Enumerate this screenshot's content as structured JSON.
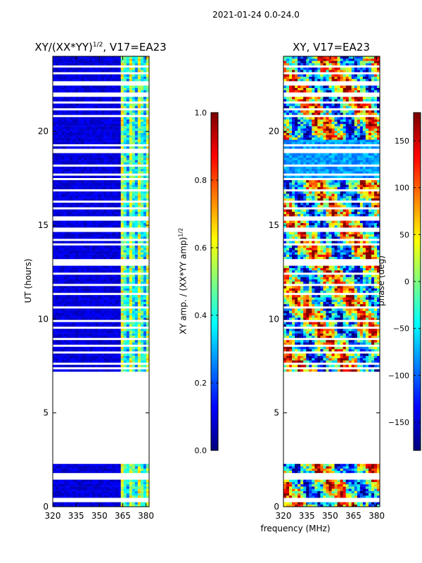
{
  "suptitle": "2021-01-24 0.0-24.0",
  "xlabel": "frequency (MHz)",
  "chart_data": [
    {
      "type": "heatmap",
      "title_main": "XY/(XX*YY)",
      "title_sup": "1/2",
      "title_tail": ", V17=EA23",
      "ylabel": "UT (hours)",
      "xlim": [
        320,
        382
      ],
      "ylim": [
        0,
        24
      ],
      "xticks": [
        320,
        335,
        350,
        365,
        380
      ],
      "yticks": [
        0,
        5,
        10,
        15,
        20
      ],
      "colorbar": {
        "label_main": "XY amp. / (XX*YY amp)",
        "label_sup": "1/2",
        "range": [
          0.0,
          1.0
        ],
        "ticks": [
          "0.0",
          "0.2",
          "0.4",
          "0.6",
          "0.8",
          "1.0"
        ],
        "colormap": "jet"
      },
      "data_gap_hours": [
        2.2,
        7.1
      ]
    },
    {
      "type": "heatmap",
      "title": "XY, V17=EA23",
      "xlim": [
        320,
        382
      ],
      "ylim": [
        0,
        24
      ],
      "xticks": [
        320,
        335,
        350,
        365,
        380
      ],
      "yticks": [
        0,
        5,
        10,
        15,
        20
      ],
      "colorbar": {
        "label": "phase (deg)",
        "range": [
          -180,
          180
        ],
        "ticks": [
          "−150",
          "−100",
          "−50",
          "0",
          "50",
          "100",
          "150"
        ],
        "colormap": "jet"
      },
      "data_gap_hours": [
        2.2,
        7.1
      ]
    }
  ]
}
